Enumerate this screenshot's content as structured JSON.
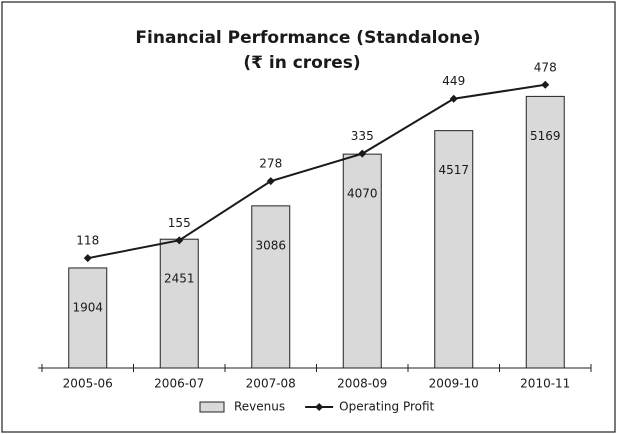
{
  "chart_data": {
    "type": "bar_line",
    "title": "Financial Performance (Standalone)",
    "subtitle": "(₹ in crores)",
    "categories": [
      "2005-06",
      "2006-07",
      "2007-08",
      "2008-09",
      "2009-10",
      "2010-11"
    ],
    "series": [
      {
        "name": "Revenus",
        "type": "bar",
        "color": "#d9d9d9",
        "values": [
          1904,
          2451,
          3086,
          4070,
          4517,
          5169
        ]
      },
      {
        "name": "Operating Profit",
        "type": "line",
        "color": "#1a1a1a",
        "axis": "y2",
        "values": [
          118,
          155,
          278,
          335,
          449,
          478
        ]
      }
    ],
    "ylim": [
      0,
      5500
    ],
    "y2lim": [
      -110,
      490
    ],
    "legend": "bottom"
  }
}
